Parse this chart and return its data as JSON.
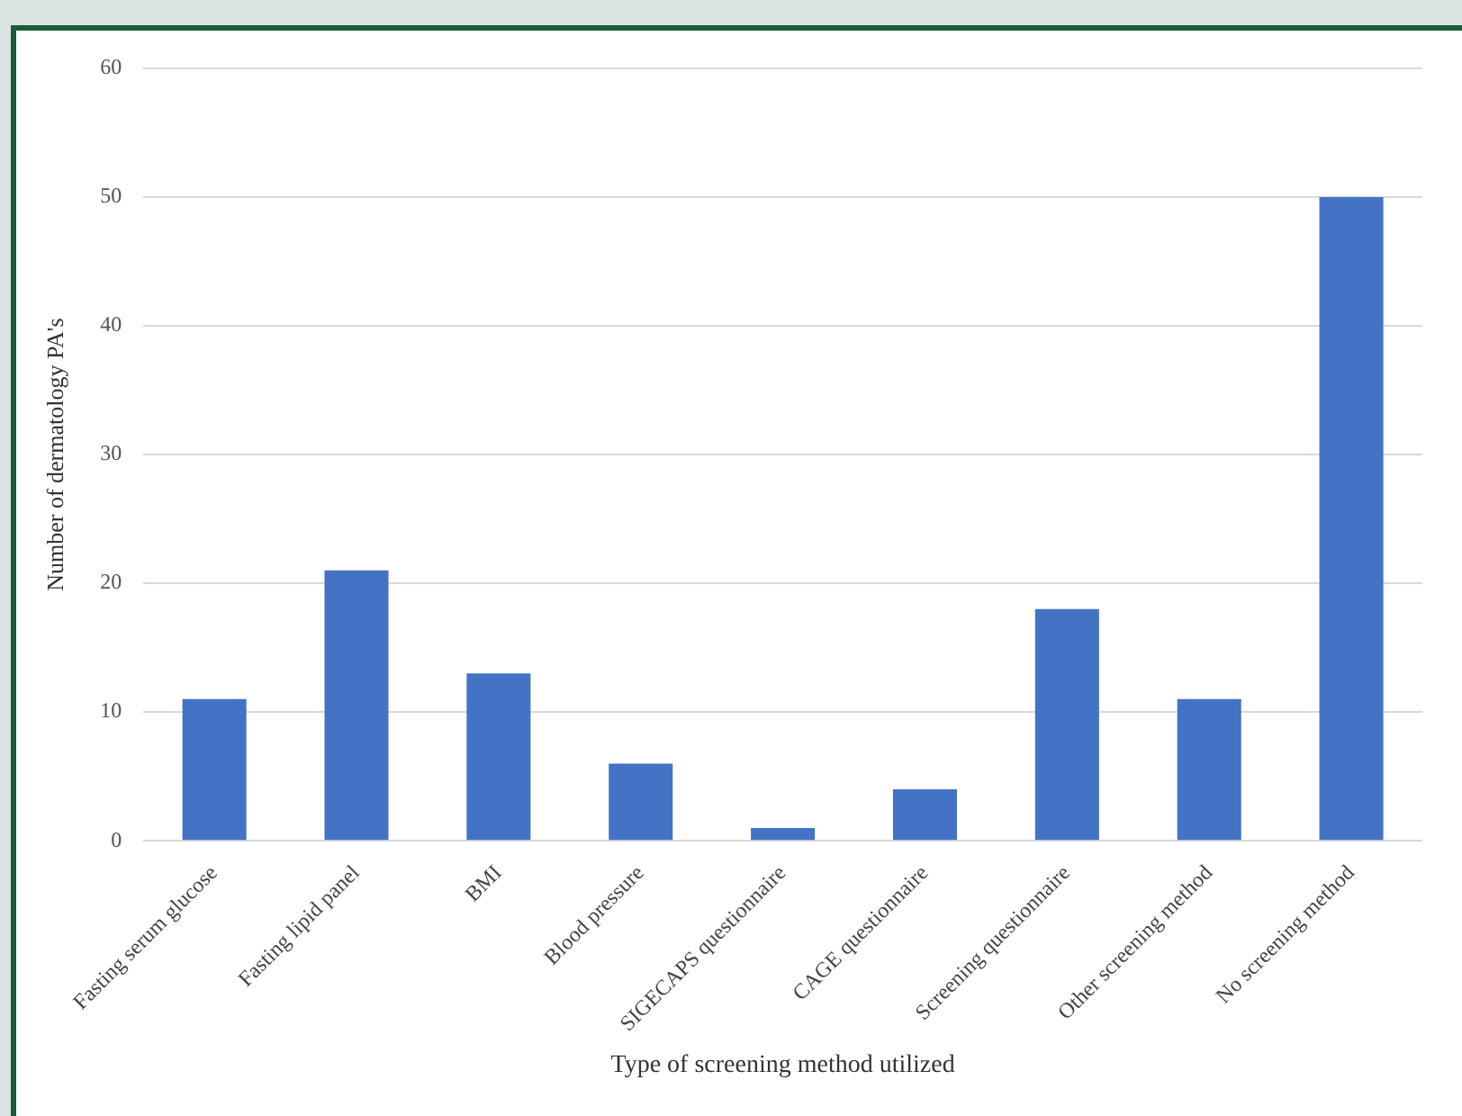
{
  "chart_data": {
    "type": "bar",
    "xlabel": "Type of screening method utilized",
    "ylabel": "Number of dermatology PA's",
    "categories": [
      "Fasting serum glucose",
      "Fasting lipid panel",
      "BMI",
      "Blood pressure",
      "SIGECAPS questionnaire",
      "CAGE questionnaire",
      "Screening questionnaire",
      "Other screening method",
      "No screening method"
    ],
    "values": [
      11,
      21,
      13,
      6,
      1,
      4,
      18,
      11,
      50
    ],
    "color": "#4472c4",
    "ylim": [
      0,
      60
    ],
    "yticks": [
      0,
      10,
      20,
      30,
      40,
      50,
      60
    ],
    "grid": "y",
    "legend": false
  }
}
